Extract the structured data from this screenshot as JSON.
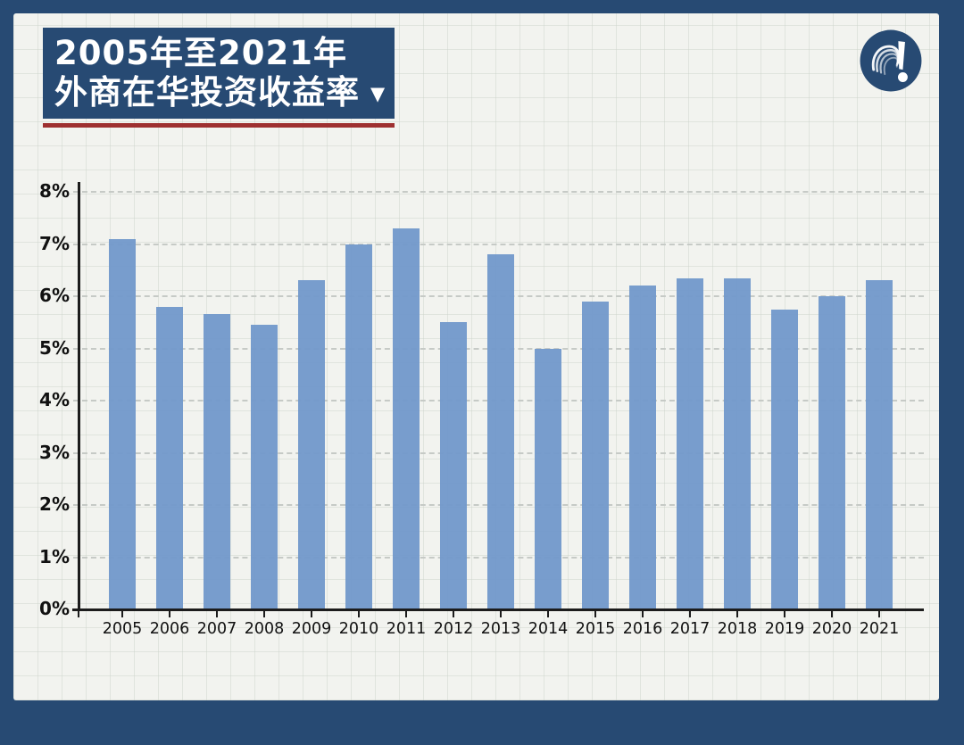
{
  "title": {
    "line1": "2005年至2021年",
    "line2": "外商在华投资收益率",
    "dropdown_arrow": "▼"
  },
  "colors": {
    "frame_navy": "#274a73",
    "title_background": "#274a73",
    "title_text": "#ffffff",
    "underline_red": "#9e3030",
    "canvas_background": "#f2f3ef",
    "bar_blue": "#7399cb",
    "axis_black": "#1c1c1c",
    "gridline_gray": "#c6cac6"
  },
  "chart_data": {
    "type": "bar",
    "title": "2005年至2021年外商在华投资收益率",
    "categories": [
      "2005",
      "2006",
      "2007",
      "2008",
      "2009",
      "2010",
      "2011",
      "2012",
      "2013",
      "2014",
      "2015",
      "2016",
      "2017",
      "2018",
      "2019",
      "2020",
      "2021"
    ],
    "values": [
      7.1,
      5.8,
      5.65,
      5.45,
      6.3,
      7.0,
      7.3,
      5.5,
      6.8,
      5.0,
      5.9,
      6.2,
      6.35,
      6.35,
      5.75,
      6.0,
      6.3
    ],
    "unit": "%",
    "xlabel": "",
    "ylabel": "",
    "ylim": [
      0,
      8
    ],
    "yticks": [
      "0%",
      "1%",
      "2%",
      "3%",
      "4%",
      "5%",
      "6%",
      "7%",
      "8%"
    ],
    "grid": "horizontal-dashed",
    "legend": "none",
    "bar_color": "#7399cb"
  }
}
